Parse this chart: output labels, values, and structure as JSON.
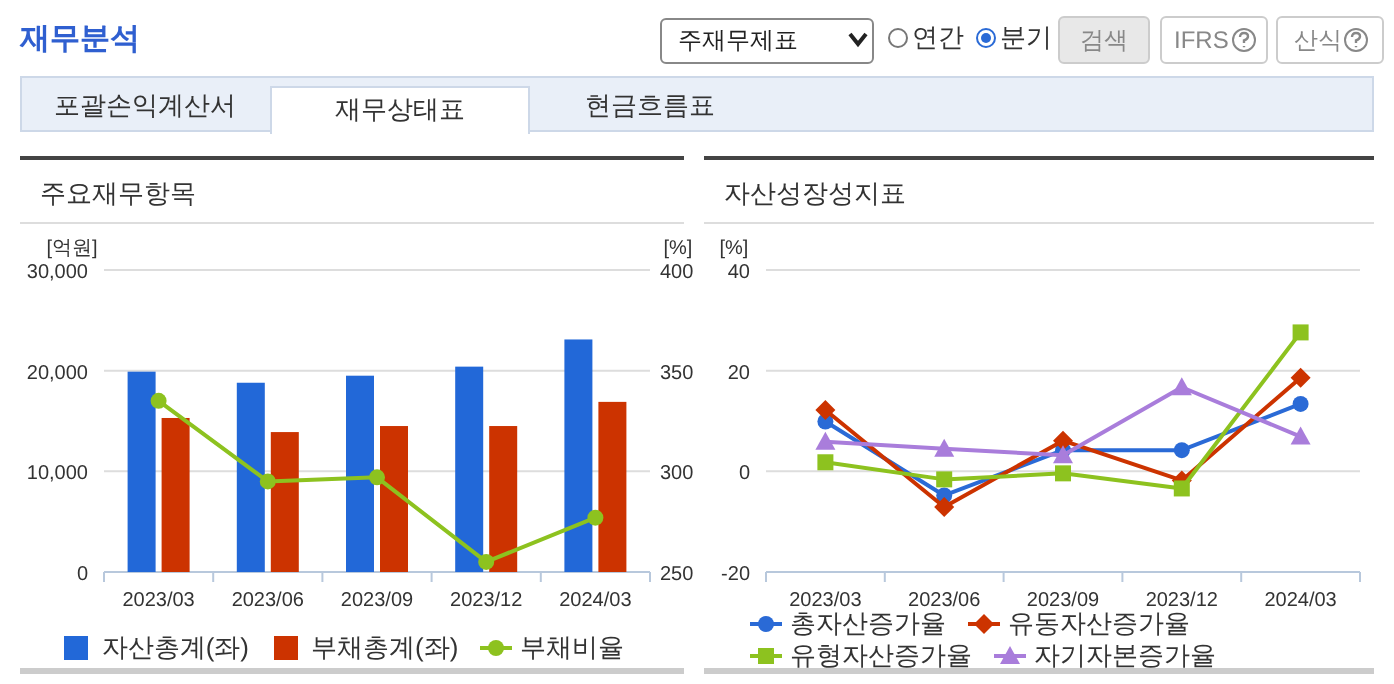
{
  "chart_data": [
    {
      "type": "other",
      "title": "재무분석",
      "annotations": [
        "주재무제표",
        "연간",
        "분기",
        "검색",
        "IFRS",
        "산식",
        "포괄손익계산서",
        "재무상태표",
        "현금흐름표"
      ]
    },
    {
      "type": "bar",
      "title": "주요재무항목",
      "ylabel": "[억원]",
      "y2label": "[%]",
      "categories": [
        "2023/03",
        "2023/06",
        "2023/09",
        "2023/12",
        "2024/03"
      ],
      "series": [
        {
          "name": "자산총계(좌)",
          "type": "bar",
          "color": "#2268d8",
          "values": [
            19900,
            18800,
            19500,
            20400,
            23100
          ]
        },
        {
          "name": "부채총계(좌)",
          "type": "bar",
          "color": "#cc3300",
          "values": [
            15300,
            13900,
            14500,
            14500,
            16900
          ]
        },
        {
          "name": "부채비율",
          "type": "line",
          "axis": "y2",
          "marker": "circle",
          "color": "#8dc21f",
          "values": [
            335,
            295,
            297,
            255,
            277
          ]
        }
      ],
      "ylim": [
        0,
        30000
      ],
      "yticks": [
        0,
        {
          "value": 10000,
          "label": "10,000"
        },
        {
          "value": 20000,
          "label": "20,000"
        },
        {
          "value": 30000,
          "label": "30,000"
        }
      ],
      "y2lim": [
        250,
        400
      ],
      "y2ticks": [
        250,
        300,
        350,
        400
      ],
      "grid": "y",
      "legend": "bottom"
    },
    {
      "type": "line",
      "title": "자산성장성지표",
      "ylabel": "[%]",
      "categories": [
        "2023/03",
        "2023/06",
        "2023/09",
        "2023/12",
        "2024/03"
      ],
      "series": [
        {
          "name": "총자산증가율",
          "marker": "circle",
          "color": "#2a6ad6",
          "values": [
            9.9,
            -4.8,
            4.2,
            4.2,
            13.4
          ]
        },
        {
          "name": "유동자산증가율",
          "marker": "diamond",
          "color": "#cc3300",
          "values": [
            12.2,
            -7.1,
            6.1,
            -1.8,
            18.6
          ]
        },
        {
          "name": "유형자산증가율",
          "marker": "square",
          "color": "#8dc21f",
          "values": [
            1.8,
            -1.6,
            -0.4,
            -3.4,
            27.6
          ]
        },
        {
          "name": "자기자본증가율",
          "marker": "triangle",
          "color": "#a97ddb",
          "values": [
            5.9,
            4.5,
            3.2,
            16.7,
            6.9
          ]
        }
      ],
      "ylim": [
        -20,
        40
      ],
      "yticks": [
        -20,
        0,
        20,
        40
      ],
      "grid": "y",
      "legend": "bottom"
    }
  ]
}
